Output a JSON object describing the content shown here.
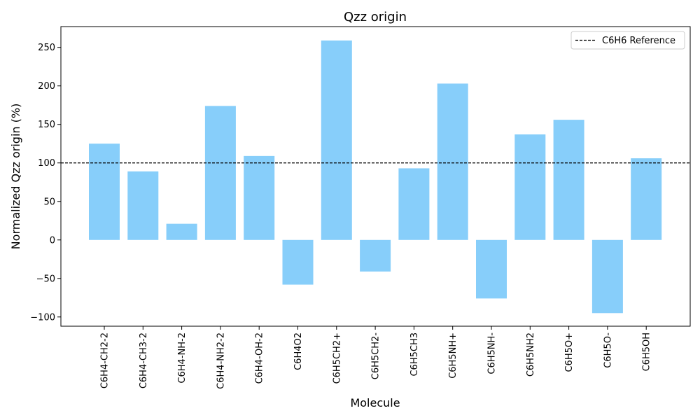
{
  "chart_data": {
    "type": "bar",
    "title": "Qzz origin",
    "xlabel": "Molecule",
    "ylabel": "Normalized Qzz origin (%)",
    "categories": [
      "C6H4-CH2-2",
      "C6H4-CH3-2",
      "C6H4-NH-2",
      "C6H4-NH2-2",
      "C6H4-OH-2",
      "C6H4O2",
      "C6H5CH2+",
      "C6H5CH2-",
      "C6H5CH3",
      "C6H5NH+",
      "C6H5NH-",
      "C6H5NH2",
      "C6H5O+",
      "C6H5O-",
      "C6H5OH"
    ],
    "values": [
      125,
      89,
      21,
      174,
      109,
      -58,
      259,
      -41,
      93,
      203,
      -76,
      137,
      156,
      -95,
      106
    ],
    "ylim": [
      -112,
      277
    ],
    "yticks": [
      -100,
      -50,
      0,
      50,
      100,
      150,
      200,
      250
    ],
    "bar_color": "#87CEFA",
    "reference": {
      "label": "C6H6 Reference",
      "value": 100,
      "style": "dashed",
      "color": "#000000"
    },
    "legend_position": "top-right",
    "grid": false
  }
}
